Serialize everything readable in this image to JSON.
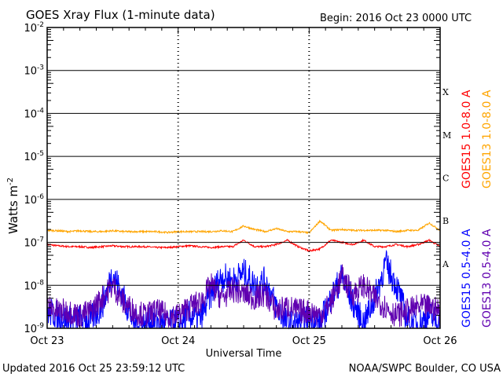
{
  "chart_data": {
    "type": "line",
    "title": "GOES Xray Flux (1-minute data)",
    "begin_label": "Begin:  2016 Oct 23 0000 UTC",
    "xlabel": "Universal Time",
    "ylabel": "Watts m",
    "ylabel_sup": "-2",
    "x_unit": "hours since 2016 Oct 23 0000 UTC",
    "xlim": [
      0,
      72
    ],
    "ylim_log10": [
      -9,
      -2
    ],
    "y_scale": "log",
    "x_ticks": [
      {
        "value": 0,
        "label": "Oct 23"
      },
      {
        "value": 24,
        "label": "Oct 24"
      },
      {
        "value": 48,
        "label": "Oct 25"
      },
      {
        "value": 72,
        "label": "Oct 26"
      }
    ],
    "y_ticks": [
      {
        "exp": -2,
        "base": "10",
        "sup": "-2"
      },
      {
        "exp": -3,
        "base": "10",
        "sup": "-3"
      },
      {
        "exp": -4,
        "base": "10",
        "sup": "-4"
      },
      {
        "exp": -5,
        "base": "10",
        "sup": "-5"
      },
      {
        "exp": -6,
        "base": "10",
        "sup": "-6"
      },
      {
        "exp": -7,
        "base": "10",
        "sup": "-7"
      },
      {
        "exp": -8,
        "base": "10",
        "sup": "-8"
      },
      {
        "exp": -9,
        "base": "10",
        "sup": "-9"
      }
    ],
    "flare_classes": [
      {
        "label": "X",
        "exp": -3.5
      },
      {
        "label": "M",
        "exp": -4.5
      },
      {
        "label": "C",
        "exp": -5.5
      },
      {
        "label": "B",
        "exp": -6.5
      },
      {
        "label": "A",
        "exp": -7.5
      }
    ],
    "x_hours": [
      0,
      2,
      4,
      6,
      8,
      10,
      12,
      14,
      16,
      18,
      20,
      22,
      24,
      26,
      28,
      30,
      32,
      34,
      36,
      38,
      40,
      42,
      44,
      46,
      48,
      50,
      52,
      54,
      56,
      58,
      60,
      62,
      64,
      66,
      68,
      70,
      72
    ],
    "series": [
      {
        "name": "GOES15 1.0-8.0 A",
        "color": "#ff0000",
        "noise": 0.02,
        "log10_values": [
          -7.05,
          -7.08,
          -7.1,
          -7.1,
          -7.12,
          -7.1,
          -7.08,
          -7.1,
          -7.1,
          -7.1,
          -7.12,
          -7.12,
          -7.1,
          -7.08,
          -7.1,
          -7.12,
          -7.1,
          -7.1,
          -6.95,
          -7.1,
          -7.1,
          -7.05,
          -6.95,
          -7.1,
          -7.2,
          -7.15,
          -6.95,
          -7.0,
          -7.05,
          -6.95,
          -7.1,
          -7.1,
          -7.05,
          -7.1,
          -7.05,
          -6.95,
          -7.1
        ]
      },
      {
        "name": "GOES13 1.0-8.0 A",
        "color": "#ffa500",
        "noise": 0.02,
        "log10_values": [
          -6.72,
          -6.73,
          -6.75,
          -6.73,
          -6.75,
          -6.75,
          -6.73,
          -6.75,
          -6.75,
          -6.75,
          -6.75,
          -6.77,
          -6.75,
          -6.75,
          -6.75,
          -6.75,
          -6.73,
          -6.75,
          -6.62,
          -6.7,
          -6.75,
          -6.68,
          -6.75,
          -6.75,
          -6.78,
          -6.5,
          -6.72,
          -6.7,
          -6.72,
          -6.72,
          -6.72,
          -6.72,
          -6.75,
          -6.72,
          -6.72,
          -6.55,
          -6.72
        ]
      },
      {
        "name": "GOES15 0.5-4.0 A",
        "color": "#0000ff",
        "noise": 0.35,
        "log10_values": [
          -8.6,
          -8.7,
          -8.8,
          -8.8,
          -8.8,
          -8.5,
          -7.7,
          -8.3,
          -8.9,
          -8.9,
          -8.8,
          -8.9,
          -8.9,
          -8.7,
          -8.8,
          -8.2,
          -7.8,
          -7.9,
          -7.7,
          -8.0,
          -7.9,
          -8.5,
          -8.9,
          -8.9,
          -8.8,
          -8.9,
          -8.3,
          -7.8,
          -8.4,
          -8.9,
          -8.3,
          -7.5,
          -8.0,
          -8.8,
          -8.9,
          -8.7,
          -8.9
        ]
      },
      {
        "name": "GOES13 0.5-4.0 A",
        "color": "#6000b0",
        "noise": 0.3,
        "log10_values": [
          -8.5,
          -8.6,
          -8.6,
          -8.7,
          -8.6,
          -8.3,
          -8.0,
          -8.4,
          -8.6,
          -8.7,
          -8.6,
          -8.7,
          -8.7,
          -8.5,
          -8.4,
          -8.0,
          -8.3,
          -8.1,
          -8.2,
          -8.3,
          -8.2,
          -8.6,
          -8.5,
          -8.6,
          -8.6,
          -8.7,
          -8.4,
          -7.8,
          -8.2,
          -8.0,
          -8.3,
          -8.5,
          -8.7,
          -8.6,
          -8.5,
          -8.5,
          -8.6
        ]
      }
    ]
  },
  "footer": {
    "updated": "Updated 2016 Oct 25 23:59:12 UTC",
    "credit": "NOAA/SWPC Boulder, CO USA"
  }
}
